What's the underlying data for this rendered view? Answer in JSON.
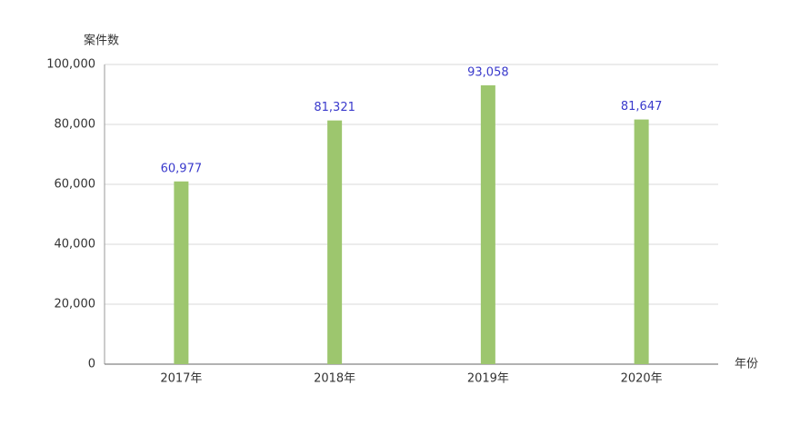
{
  "chart_data": {
    "type": "bar",
    "y_label": "案件数",
    "x_label": "年份",
    "categories": [
      "2017年",
      "2018年",
      "2019年",
      "2020年"
    ],
    "values": [
      60977,
      81321,
      93058,
      81647
    ],
    "value_labels": [
      "60,977",
      "81,321",
      "93,058",
      "81,647"
    ],
    "color": "#9dc66e",
    "ylim": [
      0,
      100000
    ],
    "yticks": [
      0,
      {
        "value": 20000,
        "label": "20,000"
      },
      {
        "value": 40000,
        "label": "40,000"
      },
      {
        "value": 60000,
        "label": "60,000"
      },
      {
        "value": 80000,
        "label": "80,000"
      },
      {
        "value": 100000,
        "label": "100,000"
      }
    ],
    "grid": true
  }
}
